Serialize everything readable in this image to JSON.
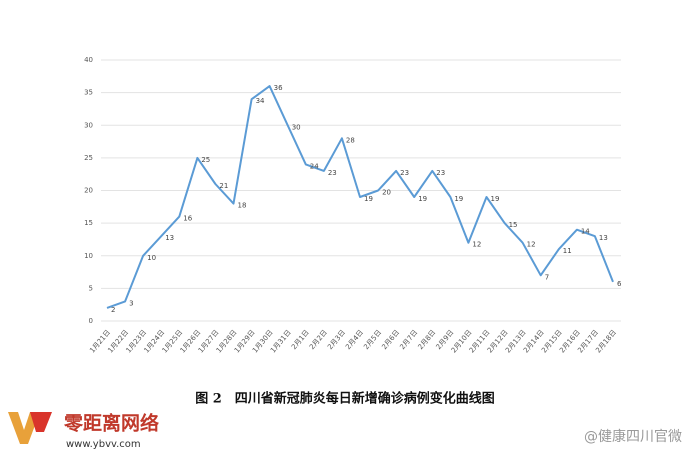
{
  "chart_data": {
    "type": "line",
    "caption": "图 2　四川省新冠肺炎每日新增确诊病例变化曲线图",
    "categories": [
      "1月21日",
      "1月22日",
      "1月23日",
      "1月24日",
      "1月25日",
      "1月26日",
      "1月27日",
      "1月28日",
      "1月29日",
      "1月30日",
      "1月31日",
      "2月1日",
      "2月2日",
      "2月3日",
      "2月4日",
      "2月5日",
      "2月6日",
      "2月7日",
      "2月8日",
      "2月9日",
      "2月10日",
      "2月11日",
      "2月12日",
      "2月13日",
      "2月14日",
      "2月15日",
      "2月16日",
      "2月17日",
      "2月18日"
    ],
    "values": [
      2,
      3,
      10,
      13,
      16,
      25,
      21,
      18,
      34,
      36,
      30,
      24,
      23,
      28,
      19,
      20,
      23,
      19,
      23,
      19,
      12,
      19,
      15,
      12,
      7,
      11,
      14,
      13,
      6
    ],
    "color": "#5b9bd5",
    "ylim": [
      0,
      40
    ],
    "yticks": [
      0,
      5,
      10,
      15,
      20,
      25,
      30,
      35,
      40
    ],
    "grid": true
  },
  "watermarks": {
    "site_name": "零距离网络",
    "site_url": "www.ybvv.com",
    "account": "@健康四川官微"
  }
}
